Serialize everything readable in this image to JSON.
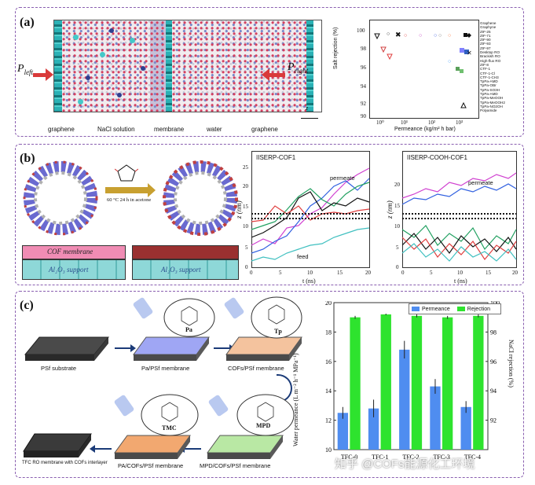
{
  "panel_a": {
    "label": "(a)",
    "p_left": "P",
    "p_left_sub": "left",
    "p_right": "P",
    "p_right_sub": "right",
    "regions": [
      "graphene",
      "NaCl solution",
      "membrane",
      "water",
      "graphene"
    ],
    "z_axis": "z",
    "chart": {
      "ylabel": "Salt rejection (%)",
      "xlabel": "Permeance (kg/m² h bar)",
      "yticks": [
        "100",
        "98",
        "96",
        "94",
        "92",
        "90"
      ],
      "xticks": [
        "10⁰",
        "10¹",
        "10²",
        "10³"
      ],
      "legend": [
        "Graphene",
        "Graphyne",
        "ZIF-25",
        "ZIF-71",
        "ZIF-90",
        "ZIF-93",
        "ZIF-97",
        "Desktop RO",
        "Brackish RO",
        "High-flux RO",
        "ZIF-8",
        "CTF-1",
        "CTF-1-Cl",
        "CTF-1-CH3",
        "TpPa-AMD",
        "TpPa-OBr",
        "TpPa-SO3H",
        "TpPa-AMD",
        "TpPa-MeOOH",
        "TpPa-MeOOH2",
        "TpPa-NO2OH",
        "Polyamide"
      ]
    }
  },
  "panel_b": {
    "label": "(b)",
    "reaction": "60 °C 24 h in acetone",
    "membrane_left": "COF membrane",
    "membrane_right": "",
    "support": "Al₂O₃ support",
    "chart1": {
      "title": "IISERP-COF1",
      "permeate": "permeate",
      "feed": "feed",
      "ylabel": "z (nm)",
      "xlabel": "t (ns)",
      "yticks": [
        "25",
        "20",
        "15",
        "10",
        "5",
        "0"
      ],
      "xticks": [
        "0",
        "5",
        "10",
        "15",
        "20"
      ]
    },
    "chart2": {
      "title": "IISERP-COOH-COF1",
      "permeate": "permeate",
      "ylabel": "z (nm)",
      "xlabel": "t (ns)",
      "yticks": [
        "20",
        "15",
        "10",
        "5",
        "0"
      ],
      "xticks": [
        "0",
        "5",
        "10",
        "15",
        "20"
      ]
    }
  },
  "panel_c": {
    "label": "(c)",
    "steps": [
      "PSf substrate",
      "Pa/PSf membrane",
      "COFs/PSf membrane",
      "MPD/COFs/PSf membrane",
      "PA/COFs/PSf membrane",
      "TFC RO membrane with COFs interlayer"
    ],
    "monomers": [
      "Pa",
      "Tp",
      "TMC",
      "MPD"
    ],
    "chart_data": {
      "type": "bar",
      "title": "",
      "categories": [
        "TFC-0",
        "TFC-1",
        "TFC-2",
        "TFC-3",
        "TFC-4"
      ],
      "series": [
        {
          "name": "Permeance",
          "values": [
            12.5,
            12.8,
            16.8,
            14.3,
            12.9
          ],
          "errors": [
            0.4,
            0.6,
            0.6,
            0.5,
            0.4
          ],
          "color": "#4f8df0"
        },
        {
          "name": "Rejection",
          "values": [
            99.0,
            99.2,
            99.1,
            99.0,
            99.1
          ],
          "errors": [
            0.1,
            0.05,
            0.1,
            0.1,
            0.1
          ],
          "color": "#2ee32e"
        }
      ],
      "ylabel": "Water permeance (L m⁻² h⁻¹ MPa⁻¹)",
      "y2label": "NaCl rejection (%)",
      "ylim": [
        10,
        20
      ],
      "y2lim": [
        90,
        100
      ],
      "yticks": [
        "20",
        "18",
        "16",
        "14",
        "12",
        "10"
      ],
      "y2ticks": [
        "100",
        "98",
        "96",
        "94",
        "92"
      ]
    }
  },
  "watermark": "知乎 @COFs能源化工环境",
  "colors": {
    "border": "#8a5fb0",
    "accent_pink": "#f08cb4",
    "support": "#8ed8d8"
  }
}
